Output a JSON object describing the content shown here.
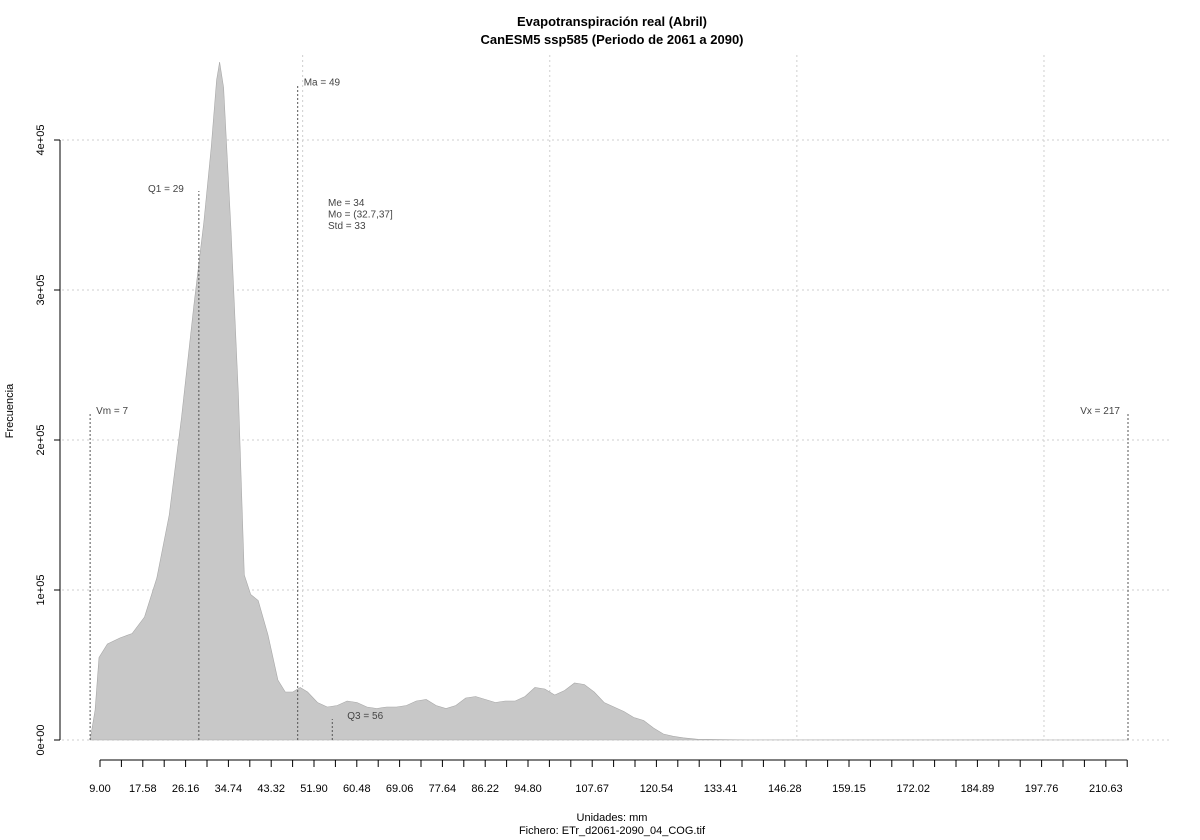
{
  "chart_data": {
    "type": "area",
    "title": "Evapotranspiración real (Abril)",
    "subtitle": "CanESM5 ssp585 (Periodo de 2061 a 2090)",
    "xlabel": "Unidades: mm",
    "footer": "Fichero: ETr_d2061-2090_04_COG.tif",
    "ylabel": "Frecuencia",
    "xlim": [
      9.0,
      217.0
    ],
    "ylim": [
      0,
      450000
    ],
    "grid": true,
    "x_tick_labels": [
      "9.00",
      "17.58",
      "26.16",
      "34.74",
      "43.32",
      "51.90",
      "60.48",
      "69.06",
      "77.64",
      "86.22",
      "94.80",
      "107.67",
      "120.54",
      "133.41",
      "146.28",
      "159.15",
      "172.02",
      "184.89",
      "197.76",
      "210.63"
    ],
    "y_ticks": [
      0,
      100000,
      200000,
      300000,
      400000
    ],
    "y_tick_labels": [
      "0e+00",
      "1e+05",
      "2e+05",
      "3e+05",
      "4e+05"
    ],
    "fill_color": "#c8c8c8",
    "series": [
      {
        "points": [
          [
            7.0,
            0
          ],
          [
            8.0,
            20000
          ],
          [
            8.8,
            55000
          ],
          [
            10.5,
            64000
          ],
          [
            13.0,
            68000
          ],
          [
            15.5,
            71000
          ],
          [
            18.0,
            82000
          ],
          [
            20.5,
            108000
          ],
          [
            23.0,
            150000
          ],
          [
            25.5,
            215000
          ],
          [
            28.0,
            290000
          ],
          [
            30.0,
            345000
          ],
          [
            31.5,
            395000
          ],
          [
            32.6,
            440000
          ],
          [
            33.2,
            452000
          ],
          [
            34.0,
            435000
          ],
          [
            35.5,
            340000
          ],
          [
            37.0,
            230000
          ],
          [
            38.2,
            110000
          ],
          [
            39.5,
            97000
          ],
          [
            41.0,
            93000
          ],
          [
            43.0,
            70000
          ],
          [
            45.0,
            40000
          ],
          [
            46.5,
            32000
          ],
          [
            48.0,
            32000
          ],
          [
            49.5,
            35000
          ],
          [
            51.0,
            32000
          ],
          [
            53.0,
            25000
          ],
          [
            55.0,
            22000
          ],
          [
            57.0,
            23000
          ],
          [
            59.0,
            26000
          ],
          [
            61.0,
            25000
          ],
          [
            63.0,
            22000
          ],
          [
            65.0,
            21000
          ],
          [
            67.0,
            22000
          ],
          [
            69.0,
            22000
          ],
          [
            71.0,
            23000
          ],
          [
            73.0,
            26000
          ],
          [
            75.0,
            27000
          ],
          [
            77.0,
            23000
          ],
          [
            79.0,
            21000
          ],
          [
            81.0,
            23000
          ],
          [
            83.0,
            28000
          ],
          [
            85.0,
            29000
          ],
          [
            87.0,
            27000
          ],
          [
            89.0,
            25000
          ],
          [
            91.0,
            26000
          ],
          [
            93.0,
            26000
          ],
          [
            95.0,
            29000
          ],
          [
            97.0,
            35000
          ],
          [
            99.0,
            34000
          ],
          [
            101.0,
            30000
          ],
          [
            103.0,
            33000
          ],
          [
            105.0,
            38000
          ],
          [
            107.0,
            37000
          ],
          [
            109.0,
            32000
          ],
          [
            111.0,
            25000
          ],
          [
            113.0,
            22000
          ],
          [
            115.0,
            19000
          ],
          [
            117.0,
            15000
          ],
          [
            119.0,
            13000
          ],
          [
            121.0,
            8000
          ],
          [
            123.0,
            4000
          ],
          [
            125.0,
            2500
          ],
          [
            127.0,
            1500
          ],
          [
            130.0,
            500
          ],
          [
            140.0,
            100
          ],
          [
            217.0,
            0
          ]
        ]
      }
    ],
    "annotations": [
      {
        "label": "Vm = 7",
        "x": 7.0,
        "y_top": 218000
      },
      {
        "label": "Q1 = 29",
        "x": 29.0,
        "y_top": 366000
      },
      {
        "label": "Ma = 49",
        "x": 49.0,
        "y_top": 437000
      },
      {
        "label": "Q3 = 56",
        "x": 56.0,
        "y_top": 14000
      },
      {
        "label": "Vx = 217",
        "x": 217.0,
        "y_top": 218000
      }
    ],
    "stats": [
      "Me = 34",
      "Mo = (32.7,37]",
      "Std = 33"
    ]
  }
}
